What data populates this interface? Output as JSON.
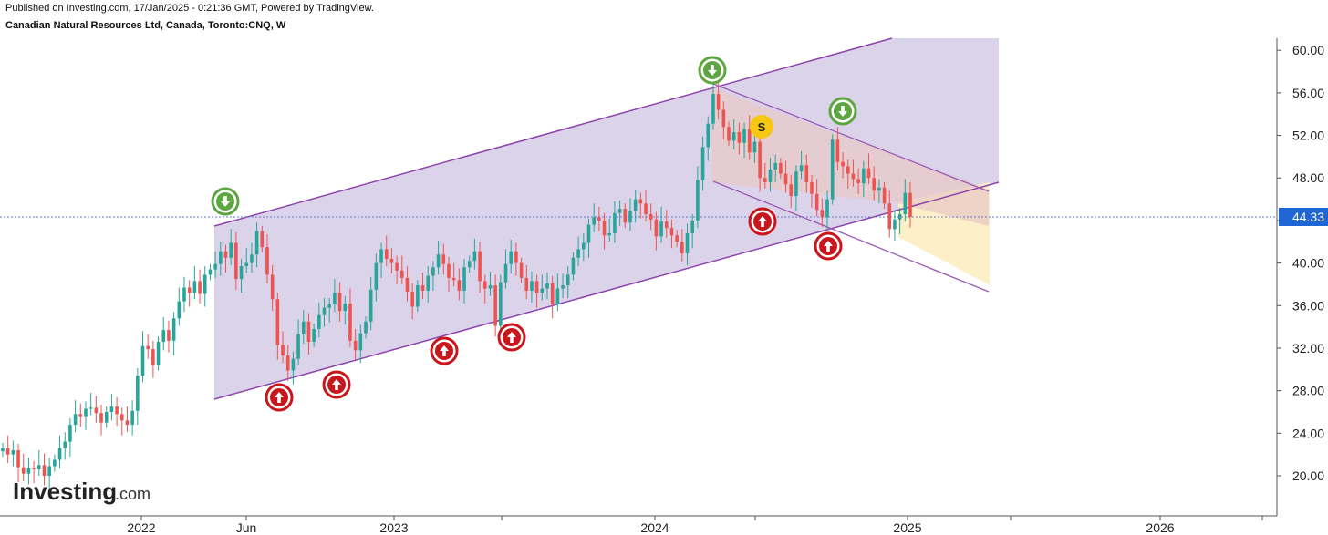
{
  "header": {
    "published": "Published on Investing.com, 17/Jan/2025 - 0:21:36 GMT, Powered by TradingView.",
    "symbol": "Canadian Natural Resources Ltd, Canada, Toronto:CNQ, W"
  },
  "logo": {
    "main": "Investing",
    "suffix": ".com"
  },
  "chart_data": {
    "type": "candlestick",
    "title": "Canadian Natural Resources Ltd, Canada, Toronto:CNQ, W",
    "x_ticks": [
      "2022",
      "Jun",
      "2023",
      "2024",
      "2025",
      "2026"
    ],
    "y_ticks": [
      "20.00",
      "24.00",
      "28.00",
      "32.00",
      "36.00",
      "40.00",
      "44.00",
      "48.00",
      "52.00",
      "56.00",
      "60.00"
    ],
    "ylim": [
      16.5,
      61.5
    ],
    "last_price": "44.33",
    "colors": {
      "up": "#26a69a",
      "down": "#ef5350",
      "channel_fill": "#d3cbe6",
      "channel_line": "#8e44ad",
      "down_channel_fill": "#e8c9c7",
      "target_zone": "#fdefc7"
    },
    "candles_close": [
      22.6,
      22.0,
      22.4,
      20.8,
      20.2,
      20.7,
      20.6,
      21.0,
      20.0,
      20.9,
      21.5,
      22.6,
      23.2,
      24.8,
      25.8,
      25.6,
      26.3,
      26.4,
      25.9,
      25.0,
      26.0,
      26.5,
      25.8,
      25.2,
      24.8,
      26.1,
      29.4,
      32.2,
      31.9,
      30.4,
      32.6,
      33.7,
      32.7,
      34.8,
      36.4,
      37.7,
      37.2,
      38.3,
      37.1,
      38.9,
      39.4,
      39.9,
      41.1,
      40.5,
      41.9,
      38.5,
      39.7,
      40.0,
      40.8,
      43.0,
      41.5,
      38.9,
      36.6,
      32.3,
      31.3,
      29.9,
      31.0,
      33.3,
      34.5,
      32.6,
      33.8,
      35.1,
      35.8,
      36.1,
      37.2,
      35.5,
      36.2,
      32.7,
      31.8,
      33.4,
      34.5,
      37.5,
      40.0,
      41.3,
      40.4,
      40.0,
      39.3,
      38.6,
      37.3,
      35.9,
      37.9,
      37.4,
      38.8,
      39.6,
      40.8,
      39.9,
      38.6,
      38.4,
      37.4,
      39.6,
      40.2,
      41.1,
      38.3,
      37.6,
      37.9,
      34.1,
      38.2,
      39.9,
      41.1,
      40.0,
      38.6,
      37.4,
      38.3,
      37.2,
      37.6,
      38.1,
      36.1,
      37.6,
      37.9,
      38.9,
      40.5,
      41.3,
      41.9,
      43.6,
      44.3,
      44.0,
      42.6,
      42.8,
      44.7,
      45.1,
      43.8,
      44.9,
      46.0,
      45.6,
      44.6,
      44.1,
      42.5,
      43.9,
      43.3,
      42.6,
      42.0,
      40.9,
      42.8,
      44.0,
      47.8,
      50.9,
      53.1,
      55.9,
      54.4,
      52.8,
      51.5,
      52.3,
      51.3,
      52.6,
      50.4,
      51.4,
      48.0,
      47.6,
      48.8,
      49.4,
      48.4,
      47.4,
      46.3,
      48.6,
      49.2,
      47.6,
      46.5,
      45.0,
      44.3,
      46.0,
      51.6,
      49.5,
      49.1,
      48.4,
      47.9,
      47.5,
      48.9,
      48.0,
      46.8,
      47.1,
      45.6,
      43.2,
      44.1,
      44.6,
      46.6,
      44.33
    ],
    "channels": [
      {
        "name": "rising channel",
        "top_start": 43.5,
        "top_end": 61.5,
        "bottom_start": 27.2,
        "bottom_end": 47.5
      },
      {
        "name": "falling channel",
        "top_start": 56.5,
        "top_end": 47.0,
        "bottom_start": 47.5,
        "bottom_end": 37.2
      }
    ],
    "markers": [
      {
        "type": "down",
        "label": "top"
      },
      {
        "type": "down",
        "label": "top"
      },
      {
        "type": "down",
        "label": "top"
      },
      {
        "type": "up",
        "label": "bottom"
      },
      {
        "type": "up",
        "label": "bottom"
      },
      {
        "type": "up",
        "label": "bottom"
      },
      {
        "type": "up",
        "label": "bottom"
      },
      {
        "type": "up",
        "label": "bottom"
      },
      {
        "type": "up",
        "label": "bottom"
      },
      {
        "type": "signal",
        "text": "S"
      }
    ],
    "grid": false
  }
}
